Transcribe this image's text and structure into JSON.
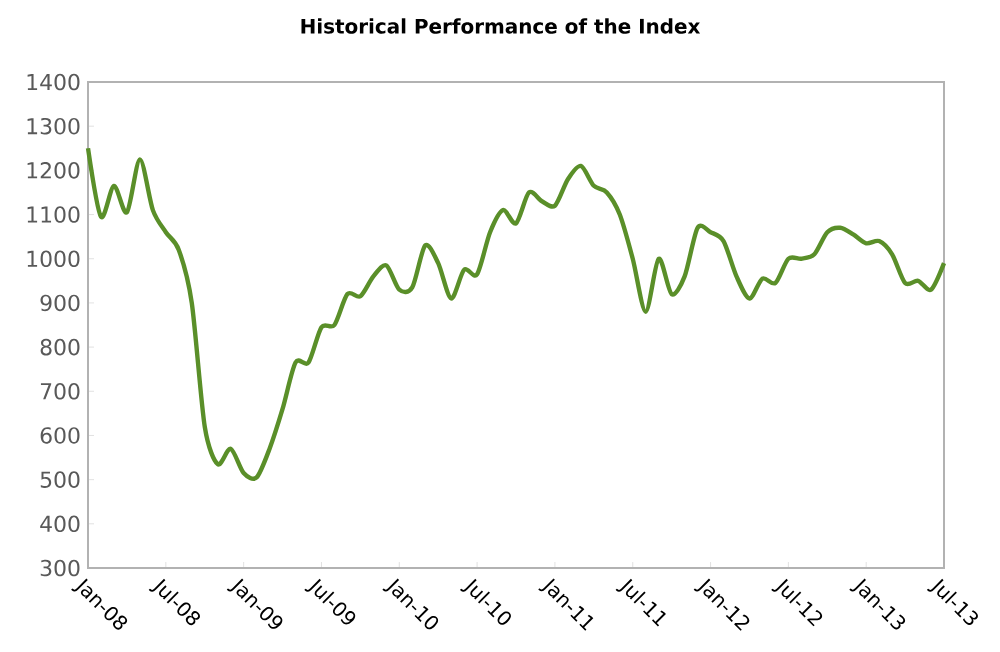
{
  "chart_data": {
    "type": "line",
    "title": "Historical Performance of the Index",
    "x": [
      "2008-01",
      "2008-02",
      "2008-03",
      "2008-04",
      "2008-05",
      "2008-06",
      "2008-07",
      "2008-08",
      "2008-09",
      "2008-10",
      "2008-11",
      "2008-12",
      "2009-01",
      "2009-02",
      "2009-03",
      "2009-04",
      "2009-05",
      "2009-06",
      "2009-07",
      "2009-08",
      "2009-09",
      "2009-10",
      "2009-11",
      "2009-12",
      "2010-01",
      "2010-02",
      "2010-03",
      "2010-04",
      "2010-05",
      "2010-06",
      "2010-07",
      "2010-08",
      "2010-09",
      "2010-10",
      "2010-11",
      "2010-12",
      "2011-01",
      "2011-02",
      "2011-03",
      "2011-04",
      "2011-05",
      "2011-06",
      "2011-07",
      "2011-08",
      "2011-09",
      "2011-10",
      "2011-11",
      "2011-12",
      "2012-01",
      "2012-02",
      "2012-03",
      "2012-04",
      "2012-05",
      "2012-06",
      "2012-07",
      "2012-08",
      "2012-09",
      "2012-10",
      "2012-11",
      "2012-12",
      "2013-01",
      "2013-02",
      "2013-03",
      "2013-04",
      "2013-05",
      "2013-06",
      "2013-07"
    ],
    "series": [
      {
        "color": "#5a8f29",
        "values": [
          1250,
          1095,
          1165,
          1105,
          1225,
          1110,
          1060,
          1020,
          900,
          620,
          535,
          570,
          515,
          505,
          570,
          660,
          765,
          765,
          845,
          850,
          920,
          915,
          960,
          985,
          930,
          935,
          1030,
          990,
          910,
          975,
          965,
          1060,
          1110,
          1080,
          1150,
          1130,
          1120,
          1180,
          1210,
          1165,
          1150,
          1100,
          1000,
          880,
          1000,
          920,
          960,
          1070,
          1060,
          1040,
          960,
          910,
          955,
          945,
          1000,
          1000,
          1010,
          1060,
          1070,
          1055,
          1035,
          1040,
          1010,
          945,
          950,
          930,
          990
        ]
      }
    ],
    "xlim": [
      "2008-01",
      "2013-07"
    ],
    "xticks": [
      {
        "value": "2008-01",
        "label": "Jan-08"
      },
      {
        "value": "2008-07",
        "label": "Jul-08"
      },
      {
        "value": "2009-01",
        "label": "Jan-09"
      },
      {
        "value": "2009-07",
        "label": "Jul-09"
      },
      {
        "value": "2010-01",
        "label": "Jan-10"
      },
      {
        "value": "2010-07",
        "label": "Jul-10"
      },
      {
        "value": "2011-01",
        "label": "Jan-11"
      },
      {
        "value": "2011-07",
        "label": "Jul-11"
      },
      {
        "value": "2012-01",
        "label": "Jan-12"
      },
      {
        "value": "2012-07",
        "label": "Jul-12"
      },
      {
        "value": "2013-01",
        "label": "Jan-13"
      },
      {
        "value": "2013-07",
        "label": "Jul-13"
      }
    ],
    "ylim": [
      300,
      1400
    ],
    "yticks": [
      300,
      400,
      500,
      600,
      700,
      800,
      900,
      1000,
      1100,
      1200,
      1300,
      1400
    ],
    "marker": "none",
    "line_style": "solid"
  }
}
